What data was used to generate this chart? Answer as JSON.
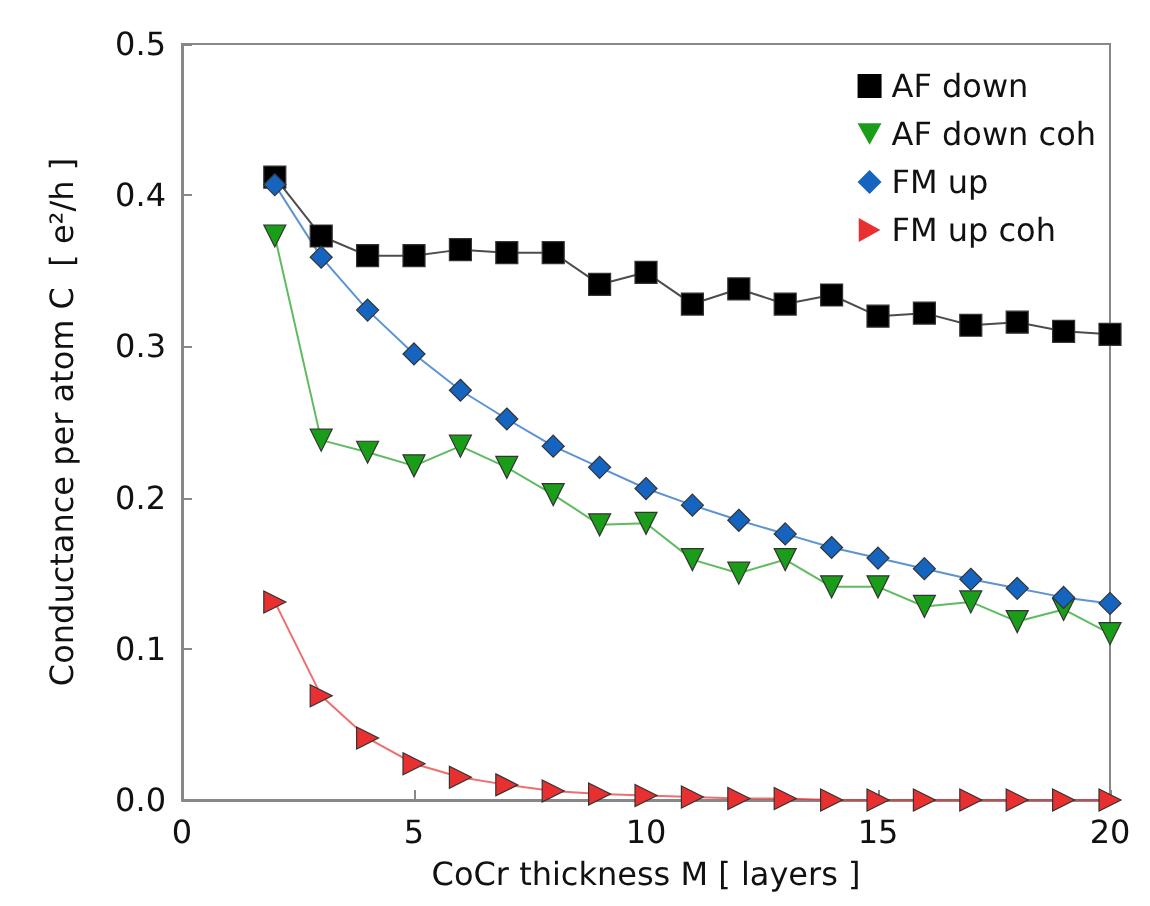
{
  "chart_data": {
    "type": "line",
    "xlabel": "CoCr thickness M [ layers ]",
    "ylabel": "Conductance per atom C  [ e²/h ]",
    "x": [
      2,
      3,
      4,
      5,
      6,
      7,
      8,
      9,
      10,
      11,
      12,
      13,
      14,
      15,
      16,
      17,
      18,
      19,
      20
    ],
    "xlim": [
      0,
      20
    ],
    "xticks": [
      0,
      5,
      10,
      15,
      20
    ],
    "ylim": [
      0,
      0.5
    ],
    "yticks": [
      {
        "value": 0,
        "label": "0.0"
      },
      0.1,
      0.2,
      0.3,
      0.4,
      0.5
    ],
    "grid": false,
    "legend": "top right",
    "line_style": "solid",
    "series": [
      {
        "name": "AF down",
        "color": "#000000",
        "marker": "square",
        "values": [
          0.412,
          0.373,
          0.36,
          0.36,
          0.364,
          0.362,
          0.362,
          0.341,
          0.349,
          0.328,
          0.338,
          0.328,
          0.334,
          0.32,
          0.322,
          0.314,
          0.316,
          0.31,
          0.308
        ]
      },
      {
        "name": "AF down coh",
        "color": "#1a9e1a",
        "marker": "triangle-down",
        "values": [
          0.373,
          0.238,
          0.23,
          0.221,
          0.234,
          0.22,
          0.202,
          0.182,
          0.183,
          0.159,
          0.15,
          0.159,
          0.141,
          0.141,
          0.128,
          0.131,
          0.118,
          0.126,
          0.11
        ]
      },
      {
        "name": "FM up",
        "color": "#1565c0",
        "marker": "diamond",
        "values": [
          0.407,
          0.359,
          0.324,
          0.295,
          0.271,
          0.252,
          0.234,
          0.22,
          0.206,
          0.195,
          0.185,
          0.176,
          0.167,
          0.16,
          0.153,
          0.146,
          0.14,
          0.134,
          0.13
        ]
      },
      {
        "name": "FM up coh",
        "color": "#e83030",
        "marker": "triangle-right",
        "values": [
          0.131,
          0.069,
          0.041,
          0.024,
          0.015,
          0.01,
          0.006,
          0.004,
          0.003,
          0.002,
          0.001,
          0.001,
          0,
          0,
          0,
          0,
          0,
          0,
          0
        ]
      }
    ]
  }
}
